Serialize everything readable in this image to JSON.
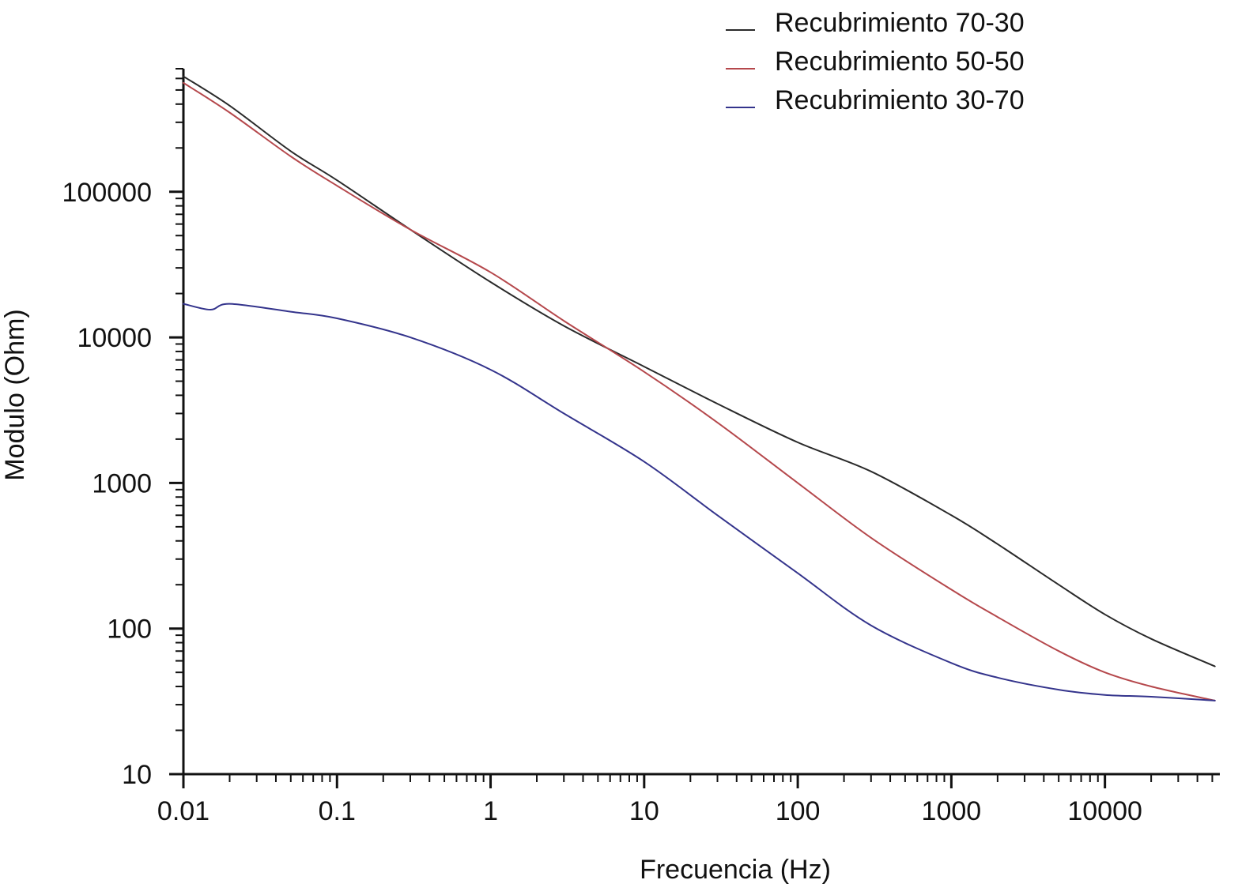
{
  "chart_data": {
    "type": "line",
    "title": "",
    "xlabel": "Frecuencia (Hz)",
    "ylabel": "Modulo (Ohm)",
    "x_scale": "log",
    "y_scale": "log",
    "xlim": [
      0.01,
      56000
    ],
    "ylim": [
      10,
      700000
    ],
    "x_ticks": [
      {
        "value": 0.01,
        "label": "0.01"
      },
      {
        "value": 0.1,
        "label": "0.1"
      },
      {
        "value": 1,
        "label": "1"
      },
      {
        "value": 10,
        "label": "10"
      },
      {
        "value": 100,
        "label": "100"
      },
      {
        "value": 1000,
        "label": "1000"
      },
      {
        "value": 10000,
        "label": "10000"
      }
    ],
    "y_ticks": [
      {
        "value": 10,
        "label": "10"
      },
      {
        "value": 100,
        "label": "100"
      },
      {
        "value": 1000,
        "label": "1000"
      },
      {
        "value": 10000,
        "label": "10000"
      },
      {
        "value": 100000,
        "label": "100000"
      }
    ],
    "grid": false,
    "legend_position": "top-right",
    "series": [
      {
        "name": "Recubrimiento 70-30",
        "color": "#2a2a2a",
        "x": [
          0.01,
          0.02,
          0.05,
          0.1,
          0.3,
          1,
          3,
          10,
          30,
          100,
          300,
          1000,
          2000,
          5000,
          10000,
          20000,
          52000
        ],
        "y": [
          620000,
          390000,
          190000,
          120000,
          55000,
          24000,
          12000,
          6300,
          3500,
          1900,
          1200,
          600,
          380,
          200,
          125,
          85,
          55
        ]
      },
      {
        "name": "Recubrimiento 50-50",
        "color": "#b5484c",
        "x": [
          0.01,
          0.02,
          0.05,
          0.1,
          0.3,
          1,
          3,
          10,
          30,
          100,
          300,
          1000,
          2000,
          5000,
          10000,
          20000,
          52000
        ],
        "y": [
          560000,
          350000,
          175000,
          110000,
          55000,
          28000,
          13000,
          5800,
          2600,
          1000,
          420,
          185,
          120,
          70,
          50,
          40,
          32
        ]
      },
      {
        "name": "Recubrimiento 30-70",
        "color": "#34348c",
        "x": [
          0.01,
          0.015,
          0.02,
          0.05,
          0.1,
          0.3,
          1,
          3,
          10,
          30,
          100,
          300,
          1000,
          2000,
          5000,
          10000,
          20000,
          52000
        ],
        "y": [
          17000,
          15500,
          17000,
          15000,
          13500,
          10000,
          6000,
          3000,
          1400,
          600,
          240,
          105,
          58,
          46,
          38,
          35,
          34,
          32
        ]
      }
    ]
  }
}
